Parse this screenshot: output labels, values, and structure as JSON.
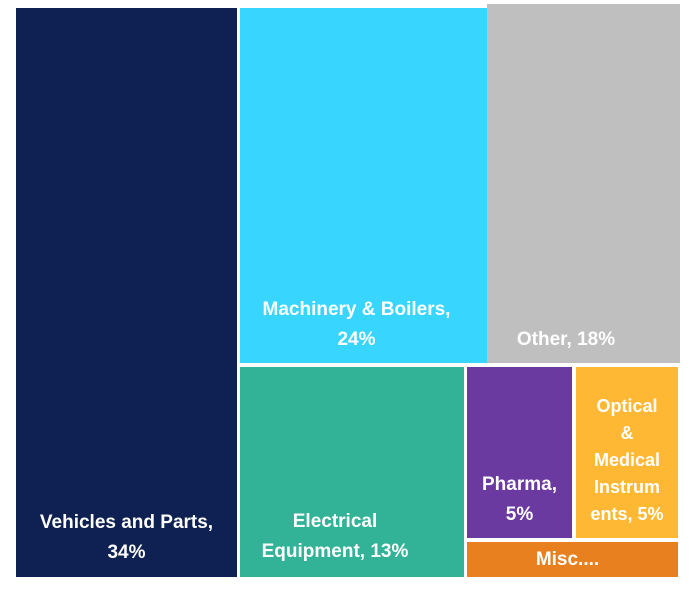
{
  "chart_data": {
    "type": "treemap",
    "items": [
      {
        "label": "Vehicles and Parts,\n34%",
        "value": 34,
        "color": "#0f2152"
      },
      {
        "label": "Machinery & Boilers,\n24%",
        "value": 24,
        "color": "#38d6ff"
      },
      {
        "label": "Other, 18%",
        "value": 18,
        "color": "#bfbfbf"
      },
      {
        "label": "Electrical\nEquipment, 13%",
        "value": 13,
        "color": "#32b296"
      },
      {
        "label": "Pharma,\n5%",
        "value": 5,
        "color": "#6b3aa1"
      },
      {
        "label": "Optical\n&\nMedical\nInstrum\nents, 5%",
        "value": 5,
        "color": "#ffb833"
      },
      {
        "label": "Misc....",
        "value": 1,
        "color": "#e8801f"
      }
    ]
  }
}
